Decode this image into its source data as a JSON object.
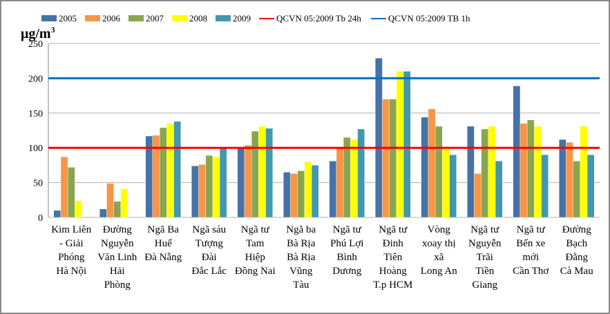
{
  "chart_data": {
    "type": "bar",
    "ylabel": "μg/m",
    "ylabel_superscript": "3",
    "ylim": [
      0,
      250
    ],
    "yticks": [
      0,
      50,
      100,
      150,
      200,
      250
    ],
    "grid": true,
    "legend_position": "top",
    "categories": [
      [
        "Kim Liên",
        "- Giải",
        "Phóng",
        "Hà Nội"
      ],
      [
        "Đường",
        "Nguyễn",
        "Văn Linh",
        "Hải",
        "Phòng"
      ],
      [
        "Ngã Ba",
        "Huế",
        "Đà Nẵng"
      ],
      [
        "Ngã sáu",
        "Tượng",
        "Đài",
        "Đắc Lắc"
      ],
      [
        "Ngã tư",
        "Tam",
        "Hiệp",
        "Đồng Nai"
      ],
      [
        "Ngã ba",
        "Bà Rịa",
        "Bà Rịa",
        "Vũng",
        "Tàu"
      ],
      [
        "Ngã tư",
        "Phú Lợi",
        "Bình",
        "Dương"
      ],
      [
        "Ngã tư",
        "Đinh",
        "Tiên",
        "Hoàng",
        "T.p HCM"
      ],
      [
        "Vòng",
        "xoay thị",
        "xã",
        "Long An"
      ],
      [
        "Ngã tư",
        "Nguyễn",
        "Trãi",
        "Tiền",
        "Giang"
      ],
      [
        "Ngã tư",
        "Bến xe",
        "mới",
        "Cần Thơ"
      ],
      [
        "Đường",
        "Bạch",
        "Đằng",
        "Cà Mau"
      ]
    ],
    "series": [
      {
        "name": "2005",
        "color": "#4572A7",
        "values": [
          10,
          12,
          117,
          74,
          100,
          65,
          81,
          229,
          144,
          131,
          189,
          112
        ]
      },
      {
        "name": "2006",
        "color": "#F79646",
        "values": [
          87,
          49,
          118,
          76,
          104,
          63,
          99,
          170,
          156,
          63,
          135,
          108
        ]
      },
      {
        "name": "2007",
        "color": "#89A54E",
        "values": [
          72,
          23,
          129,
          89,
          124,
          67,
          115,
          170,
          131,
          127,
          140,
          81
        ]
      },
      {
        "name": "2008",
        "color": "#FFFF00",
        "values": [
          24,
          41,
          135,
          87,
          131,
          80,
          112,
          210,
          99,
          131,
          131,
          131
        ]
      },
      {
        "name": "2009",
        "color": "#4198AF",
        "values": [
          null,
          null,
          138,
          100,
          128,
          75,
          127,
          210,
          90,
          81,
          90,
          90
        ]
      }
    ],
    "reference_lines": [
      {
        "name": "QCVN 05:2009 Tb 24h",
        "color": "#FF0000",
        "value": 100
      },
      {
        "name": "QCVN 05:2009 TB 1h",
        "color": "#0070C0",
        "value": 200
      }
    ]
  }
}
